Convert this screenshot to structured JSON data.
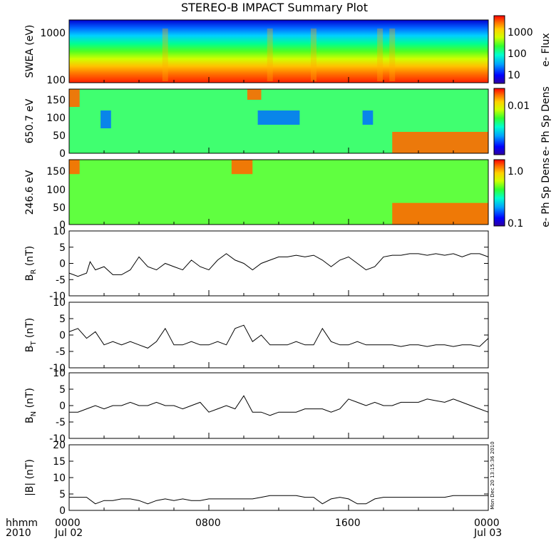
{
  "title": "STEREO-B IMPACT Summary Plot",
  "footer": {
    "hhmm": "hhmm",
    "year": "2010",
    "date_start": "Jul 02",
    "date_end": "Jul 03"
  },
  "stamp": "Mon Dec 20 13:15:36 2010",
  "colors": {
    "scale": [
      "#3000a0",
      "#0000ff",
      "#00a0ff",
      "#00ffd0",
      "#30ff30",
      "#d0ff00",
      "#ffd000",
      "#ff7000",
      "#ff0000"
    ]
  },
  "chart_data": [
    {
      "type": "heatmap",
      "ylabel": "SWEA (eV)",
      "colorbar_label": "e- Flux",
      "yscale": "log",
      "ylim": [
        100,
        2000
      ],
      "yticks": [
        "1000",
        "100"
      ],
      "colorbar_ticks": [
        "1000",
        "100",
        "10"
      ],
      "xlim": [
        0,
        24
      ],
      "description_rows_energy_eV": [
        2000,
        1000,
        500,
        250,
        100
      ],
      "band_values_log_flux": [
        0.9,
        1.6,
        2.4,
        3.1,
        3.6
      ],
      "event_hours": [
        5.5,
        11.5,
        14.0,
        17.8,
        18.5
      ]
    },
    {
      "type": "heatmap",
      "ylabel": "650.7 eV",
      "colorbar_label": "e- Ph Sp Dens",
      "ylim": [
        0,
        180
      ],
      "yticks": [
        "150",
        "100",
        "50",
        "0"
      ],
      "colorbar_ticks": [
        "0.01"
      ],
      "xlim": [
        0,
        24
      ],
      "regions": [
        {
          "x": [
            0,
            0.6
          ],
          "y": [
            130,
            180
          ],
          "level": "high"
        },
        {
          "x": [
            1.8,
            2.4
          ],
          "y": [
            70,
            120
          ],
          "level": "low"
        },
        {
          "x": [
            10.2,
            11.0
          ],
          "y": [
            150,
            180
          ],
          "level": "high"
        },
        {
          "x": [
            10.8,
            13.2
          ],
          "y": [
            80,
            120
          ],
          "level": "low"
        },
        {
          "x": [
            16.8,
            17.4
          ],
          "y": [
            80,
            120
          ],
          "level": "low"
        },
        {
          "x": [
            18.5,
            24
          ],
          "y": [
            0,
            60
          ],
          "level": "high"
        }
      ]
    },
    {
      "type": "heatmap",
      "ylabel": "246.6 eV",
      "colorbar_label": "e- Ph Sp Dens",
      "ylim": [
        0,
        180
      ],
      "yticks": [
        "150",
        "100",
        "50",
        "0"
      ],
      "colorbar_ticks": [
        "1.0",
        "0.1"
      ],
      "xlim": [
        0,
        24
      ],
      "regions": [
        {
          "x": [
            0,
            0.6
          ],
          "y": [
            140,
            180
          ],
          "level": "high"
        },
        {
          "x": [
            9.3,
            10.5
          ],
          "y": [
            140,
            180
          ],
          "level": "high"
        },
        {
          "x": [
            18.5,
            24
          ],
          "y": [
            0,
            60
          ],
          "level": "high"
        }
      ]
    },
    {
      "type": "line",
      "ylabel": "BR (nT)",
      "ylabel_main": "B",
      "ylabel_sub": "R",
      "ylabel_unit": "(nT)",
      "ylim": [
        -10,
        10
      ],
      "yticks": [
        "10",
        "5",
        "0",
        "-5",
        "-10"
      ],
      "xlim": [
        0,
        24
      ],
      "x": [
        0,
        0.5,
        1,
        1.2,
        1.5,
        2,
        2.5,
        3,
        3.5,
        4,
        4.5,
        5,
        5.5,
        6,
        6.5,
        7,
        7.5,
        8,
        8.5,
        9,
        9.5,
        10,
        10.5,
        11,
        11.5,
        12,
        12.5,
        13,
        13.5,
        14,
        14.5,
        15,
        15.5,
        16,
        16.5,
        17,
        17.5,
        18,
        18.5,
        19,
        19.5,
        20,
        20.5,
        21,
        21.5,
        22,
        22.5,
        23,
        23.5,
        24
      ],
      "values": [
        -3,
        -4,
        -3,
        0.5,
        -2,
        -1,
        -3.5,
        -3.5,
        -2,
        2,
        -1,
        -2,
        0,
        -1,
        -2,
        1,
        -1,
        -2,
        1,
        3,
        1,
        0,
        -2,
        0,
        1,
        2,
        2,
        2.5,
        2,
        2.5,
        1,
        -1,
        1,
        2,
        0,
        -2,
        -1,
        2,
        2.5,
        2.5,
        3,
        3,
        2.5,
        3,
        2.5,
        3,
        2,
        3,
        3,
        2
      ]
    },
    {
      "type": "line",
      "ylabel": "BT (nT)",
      "ylabel_main": "B",
      "ylabel_sub": "T",
      "ylabel_unit": "(nT)",
      "ylim": [
        -10,
        10
      ],
      "yticks": [
        "10",
        "5",
        "0",
        "-5",
        "-10"
      ],
      "xlim": [
        0,
        24
      ],
      "x": [
        0,
        0.5,
        1,
        1.5,
        2,
        2.5,
        3,
        3.5,
        4,
        4.5,
        5,
        5.5,
        6,
        6.5,
        7,
        7.5,
        8,
        8.5,
        9,
        9.5,
        10,
        10.5,
        11,
        11.5,
        12,
        12.5,
        13,
        13.5,
        14,
        14.5,
        15,
        15.5,
        16,
        16.5,
        17,
        17.5,
        18,
        18.5,
        19,
        19.5,
        20,
        20.5,
        21,
        21.5,
        22,
        22.5,
        23,
        23.5,
        24
      ],
      "values": [
        1,
        2,
        -1,
        1,
        -3,
        -2,
        -3,
        -2,
        -3,
        -4,
        -2,
        2,
        -3,
        -3,
        -2,
        -3,
        -3,
        -2,
        -3,
        2,
        3,
        -2,
        0,
        -3,
        -3,
        -3,
        -2,
        -3,
        -3,
        2,
        -2,
        -3,
        -3,
        -2,
        -3,
        -3,
        -3,
        -3,
        -3.5,
        -3,
        -3,
        -3.5,
        -3,
        -3,
        -3.5,
        -3,
        -3,
        -3.5,
        -1
      ]
    },
    {
      "type": "line",
      "ylabel": "BN (nT)",
      "ylabel_main": "B",
      "ylabel_sub": "N",
      "ylabel_unit": "(nT)",
      "ylim": [
        -10,
        10
      ],
      "yticks": [
        "10",
        "5",
        "0",
        "-5",
        "-10"
      ],
      "xlim": [
        0,
        24
      ],
      "x": [
        0,
        0.5,
        1,
        1.5,
        2,
        2.5,
        3,
        3.5,
        4,
        4.5,
        5,
        5.5,
        6,
        6.5,
        7,
        7.5,
        8,
        8.5,
        9,
        9.5,
        10,
        10.5,
        11,
        11.5,
        12,
        12.5,
        13,
        13.5,
        14,
        14.5,
        15,
        15.5,
        16,
        16.5,
        17,
        17.5,
        18,
        18.5,
        19,
        19.5,
        20,
        20.5,
        21,
        21.5,
        22,
        22.5,
        23,
        23.5,
        24
      ],
      "values": [
        -2,
        -2,
        -1,
        0,
        -1,
        0,
        0,
        1,
        0,
        0,
        1,
        0,
        0,
        -1,
        0,
        1,
        -2,
        -1,
        0,
        -1,
        3,
        -2,
        -2,
        -3,
        -2,
        -2,
        -2,
        -1,
        -1,
        -1,
        -2,
        -1,
        2,
        1,
        0,
        1,
        0,
        0,
        1,
        1,
        1,
        2,
        1.5,
        1,
        2,
        1,
        0,
        -1,
        -2
      ]
    },
    {
      "type": "line",
      "ylabel": "|B| (nT)",
      "ylim": [
        0,
        20
      ],
      "yticks": [
        "20",
        "15",
        "10",
        "5",
        "0"
      ],
      "xlim": [
        0,
        24
      ],
      "xticks": [
        "0000",
        "0800",
        "1600",
        "0000"
      ],
      "x": [
        0,
        0.5,
        1,
        1.5,
        2,
        2.5,
        3,
        3.5,
        4,
        4.5,
        5,
        5.5,
        6,
        6.5,
        7,
        7.5,
        8,
        8.5,
        9,
        9.5,
        10,
        10.5,
        11,
        11.5,
        12,
        12.5,
        13,
        13.5,
        14,
        14.5,
        15,
        15.5,
        16,
        16.5,
        17,
        17.5,
        18,
        18.5,
        19,
        19.5,
        20,
        20.5,
        21,
        21.5,
        22,
        22.5,
        23,
        23.5,
        24
      ],
      "values": [
        4,
        4,
        4,
        2,
        3,
        3,
        3.5,
        3.5,
        3,
        2,
        3,
        3.5,
        3,
        3.5,
        3,
        3,
        3.5,
        3.5,
        3.5,
        3.5,
        3.5,
        3.5,
        4,
        4.5,
        4.5,
        4.5,
        4.5,
        4,
        4,
        2,
        3.5,
        4,
        3.5,
        2,
        2,
        3.5,
        4,
        4,
        4,
        4,
        4,
        4,
        4,
        4,
        4.5,
        4.5,
        4.5,
        4.5,
        4.5
      ]
    }
  ]
}
